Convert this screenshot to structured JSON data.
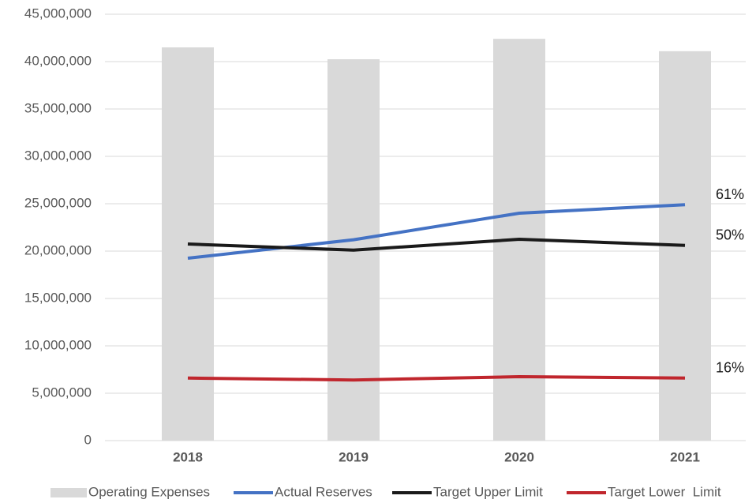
{
  "chart_data": {
    "type": "combo",
    "categories": [
      "2018",
      "2019",
      "2020",
      "2021"
    ],
    "series": [
      {
        "name": "Operating Expenses",
        "type": "bar",
        "color": "#d9d9d9",
        "values": [
          41500000,
          40250000,
          42400000,
          41100000
        ]
      },
      {
        "name": "Actual Reserves",
        "type": "line",
        "color": "#4472c4",
        "values": [
          19250000,
          21200000,
          24000000,
          24900000
        ],
        "end_label": "61%"
      },
      {
        "name": "Target Upper Limit",
        "type": "line",
        "color": "#1a1a1a",
        "values": [
          20750000,
          20100000,
          21250000,
          20600000
        ],
        "end_label": "50%"
      },
      {
        "name": "Target Lower  Limit",
        "type": "line",
        "color": "#c0262d",
        "values": [
          6600000,
          6400000,
          6750000,
          6600000
        ],
        "end_label": "16%"
      }
    ],
    "ylim": [
      0,
      45000000
    ],
    "yticks": [
      0,
      {
        "value": 5000000,
        "label": "5,000,000"
      },
      {
        "value": 10000000,
        "label": "10,000,000"
      },
      {
        "value": 15000000,
        "label": "15,000,000"
      },
      {
        "value": 20000000,
        "label": "20,000,000"
      },
      {
        "value": 25000000,
        "label": "25,000,000"
      },
      {
        "value": 30000000,
        "label": "30,000,000"
      },
      {
        "value": 35000000,
        "label": "35,000,000"
      },
      {
        "value": 40000000,
        "label": "40,000,000"
      },
      {
        "value": 45000000,
        "label": "45,000,000"
      }
    ],
    "grid": true,
    "legend": "bottom"
  }
}
